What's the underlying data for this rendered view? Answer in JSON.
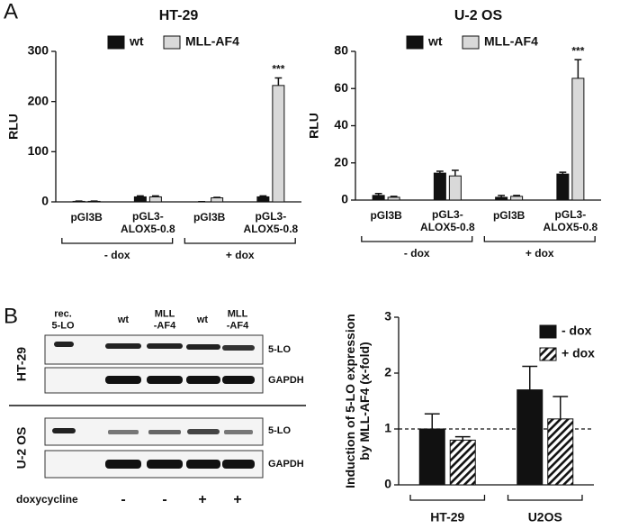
{
  "panels": [
    "A",
    "B"
  ],
  "chart_data": [
    {
      "type": "bar",
      "title": "HT-29",
      "y_label": "RLU",
      "categories": [
        "pGl3B",
        "pGL3-\nALOX5-0.8",
        "pGl3B",
        "pGL3-\nALOX5-0.8"
      ],
      "groups": [
        "- dox",
        "+ dox"
      ],
      "series": [
        {
          "name": "wt",
          "color": "#111111",
          "values": [
            1,
            10,
            0,
            10
          ],
          "errors": [
            0.5,
            2,
            0.5,
            2
          ]
        },
        {
          "name": "MLL-AF4",
          "color": "#d9d9d9",
          "values": [
            1,
            10,
            8,
            232
          ],
          "errors": [
            0.5,
            2,
            1,
            15
          ]
        }
      ],
      "annotations": [
        {
          "text": "***",
          "series": 1,
          "index": 3
        }
      ],
      "ylim": [
        0,
        300
      ],
      "yticks": [
        0,
        100,
        200,
        300
      ]
    },
    {
      "type": "bar",
      "title": "U-2 OS",
      "y_label": "RLU",
      "categories": [
        "pGl3B",
        "pGL3-\nALOX5-0.8",
        "pGl3B",
        "pGL3-\nALOX5-0.8"
      ],
      "groups": [
        "- dox",
        "+ dox"
      ],
      "series": [
        {
          "name": "wt",
          "color": "#111111",
          "values": [
            2.5,
            14.5,
            1.5,
            14
          ],
          "errors": [
            1,
            1,
            1,
            1
          ]
        },
        {
          "name": "MLL-AF4",
          "color": "#d9d9d9",
          "values": [
            1.5,
            13,
            2,
            65.5
          ],
          "errors": [
            0.5,
            3,
            0.5,
            10
          ]
        }
      ],
      "annotations": [
        {
          "text": "***",
          "series": 1,
          "index": 3
        }
      ],
      "ylim": [
        0,
        80
      ],
      "yticks": [
        0,
        20,
        40,
        60,
        80
      ]
    },
    {
      "type": "bar",
      "y_label": "Induction of 5-LO expression\nby MLL-AF4 (x-fold)",
      "categories": [
        "HT-29",
        "U2OS"
      ],
      "series": [
        {
          "name": "- dox",
          "color": "#111111",
          "values": [
            1,
            1.7
          ],
          "errors": [
            0.27,
            0.42
          ]
        },
        {
          "name": "+ dox",
          "color": "#111111",
          "pattern": "hatch",
          "values": [
            0.8,
            1.18
          ],
          "errors": [
            0.06,
            0.4
          ]
        }
      ],
      "reference_line": 1,
      "ylim": [
        0,
        3
      ],
      "yticks": [
        0,
        1,
        2,
        3
      ]
    }
  ],
  "blot": {
    "lanes": [
      "rec.\n5-LO",
      "wt",
      "MLL\n-AF4",
      "wt",
      "MLL\n-AF4"
    ],
    "cell_lines": [
      "HT-29",
      "U-2 OS"
    ],
    "bands": [
      "5-LO",
      "GAPDH"
    ],
    "treatment": "doxycycline",
    "treatment_signs": [
      "-",
      "-",
      "+",
      "+"
    ]
  }
}
